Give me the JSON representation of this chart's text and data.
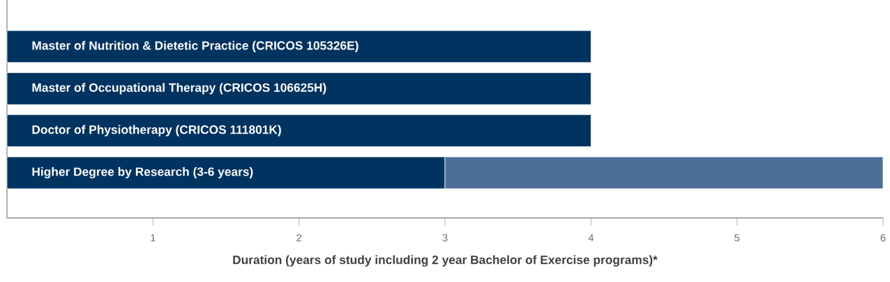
{
  "chart_data": {
    "type": "bar",
    "orientation": "horizontal",
    "stacked": true,
    "categories": [
      "Master of Nutrition & Dietetic Practice (CRICOS 105326E)",
      "Master of Occupational Therapy (CRICOS 106625H)",
      "Doctor of Physiotherapy (CRICOS 111801K)",
      "Higher Degree by Research (3-6 years)"
    ],
    "series": [
      {
        "color": "#003360",
        "values": [
          4,
          4,
          4,
          3
        ]
      },
      {
        "color": "#4b6f97",
        "values": [
          null,
          null,
          null,
          3
        ]
      }
    ],
    "xlim": [
      0,
      6
    ],
    "xticks": [
      1,
      2,
      3,
      4,
      5,
      6
    ],
    "xlabel": "Duration (years of study including 2 year Bachelor of Exercise programs)*"
  }
}
